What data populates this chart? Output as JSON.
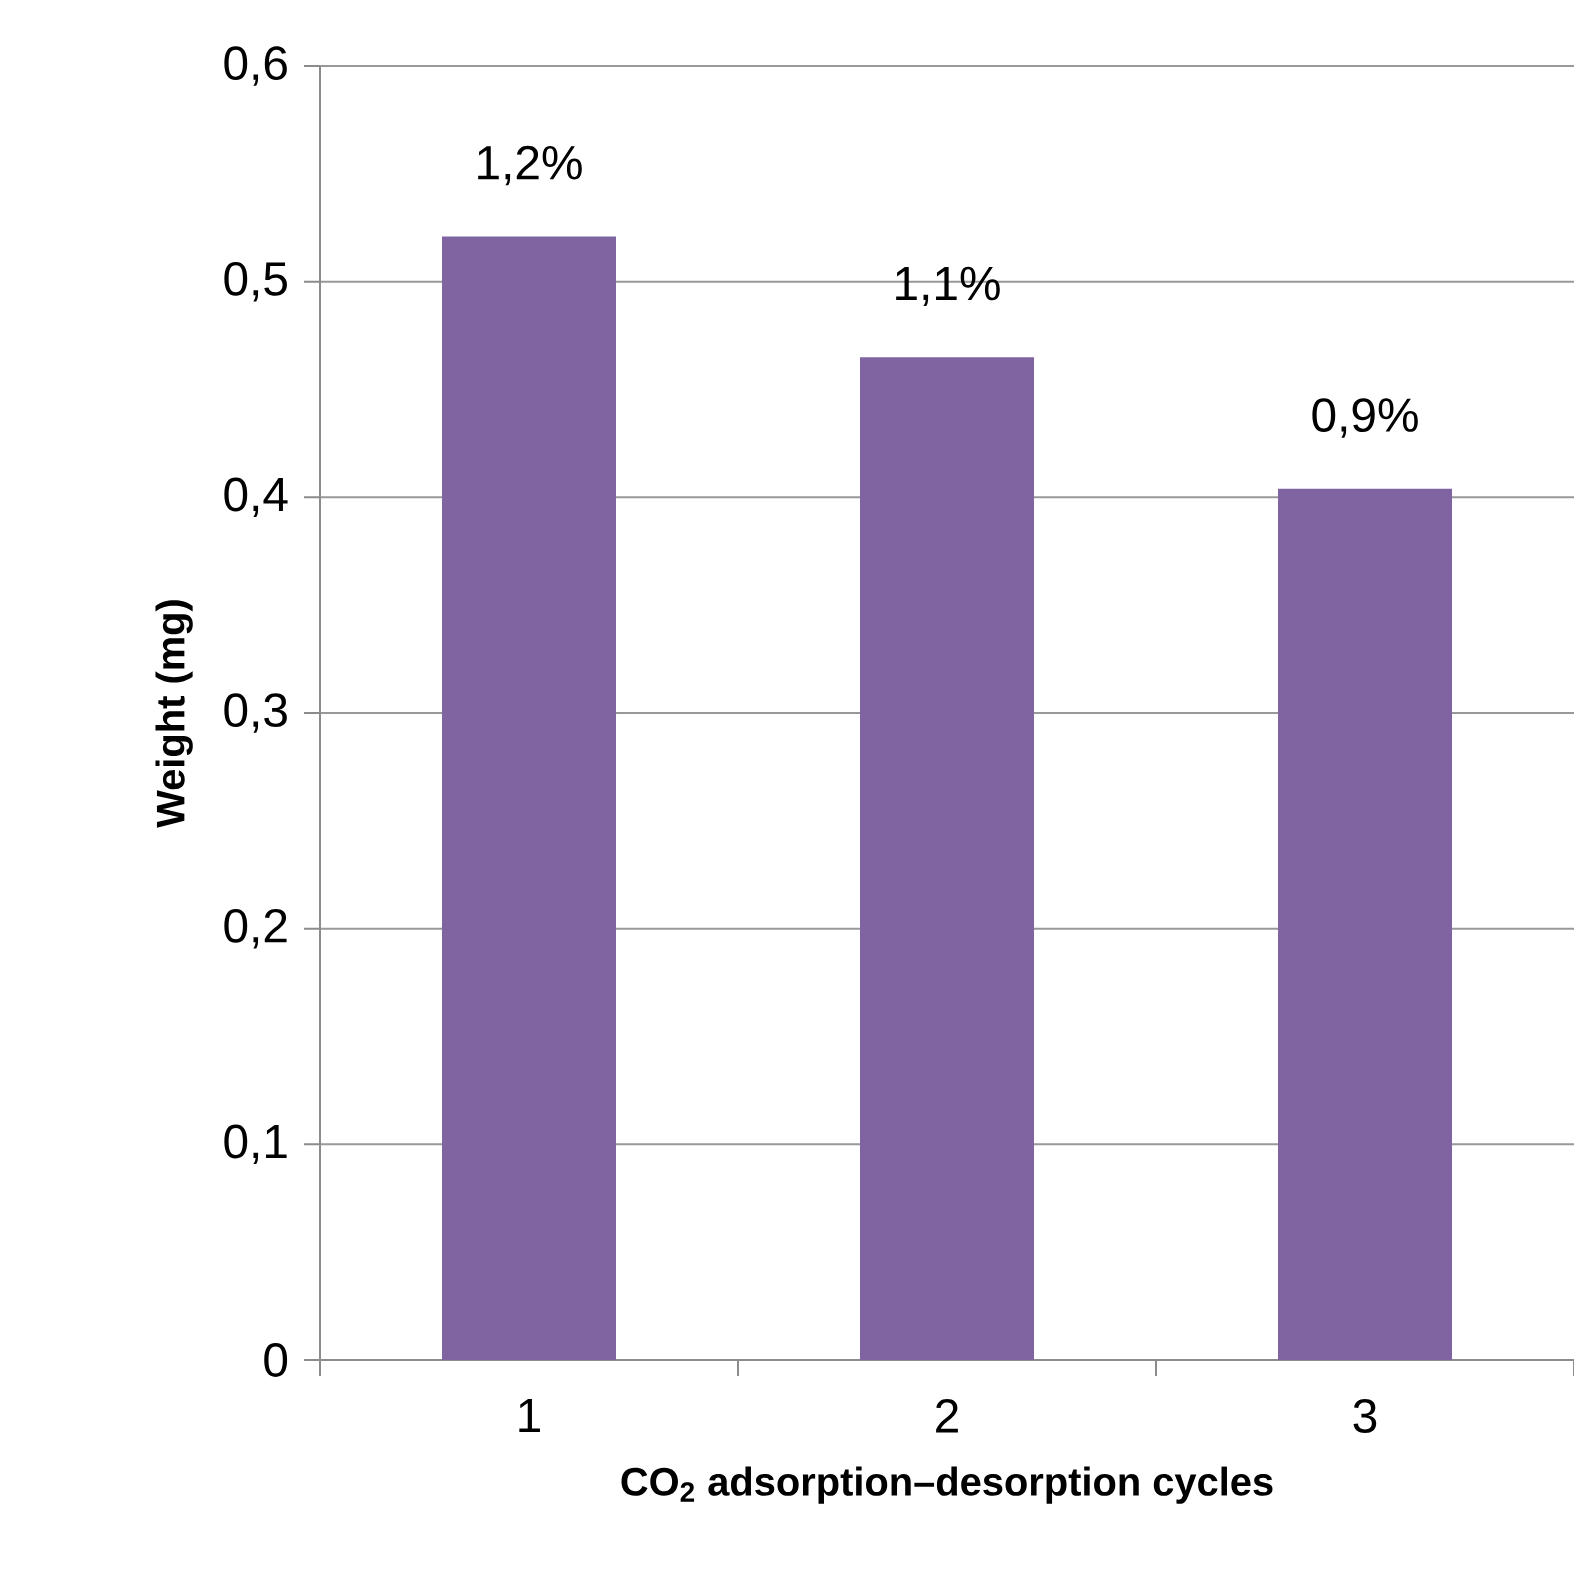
{
  "chart_data": {
    "type": "bar",
    "xlabel": "CO$_{2}$ adsorption–desorption cycles",
    "ylabel": "Weight (mg)",
    "categories": [
      "1",
      "2",
      "3"
    ],
    "values": [
      0.521,
      0.465,
      0.404
    ],
    "annotations": [
      {
        "text": "1,2%",
        "x": "1",
        "y": 0.521
      },
      {
        "text": "1,1%",
        "x": "2",
        "y": 0.465
      },
      {
        "text": "0,9%",
        "x": "3",
        "y": 0.404
      }
    ],
    "color": "#8064a2",
    "ylim": [
      0,
      0.6
    ],
    "yticks": [
      0,
      {
        "value": 0.1,
        "label": "0,1"
      },
      {
        "value": 0.2,
        "label": "0,2"
      },
      {
        "value": 0.3,
        "label": "0,3"
      },
      {
        "value": 0.4,
        "label": "0,4"
      },
      {
        "value": 0.5,
        "label": "0,5"
      },
      {
        "value": 0.6,
        "label": "0,6"
      }
    ],
    "grid": "y"
  }
}
